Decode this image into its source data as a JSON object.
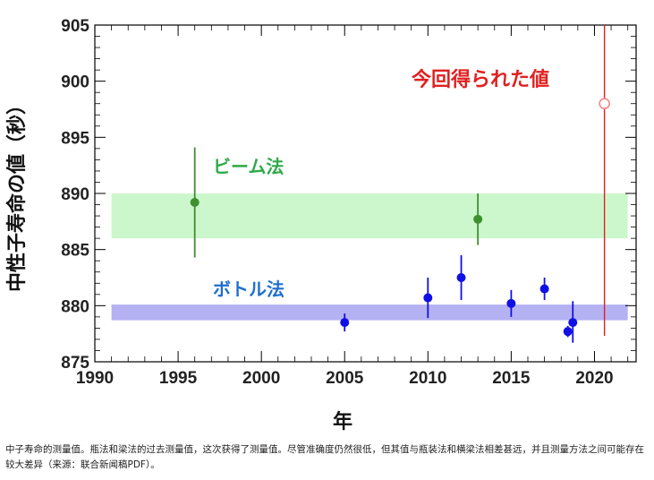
{
  "chart_data": {
    "type": "scatter",
    "xlabel": "年",
    "ylabel": "中性子寿命の値（秒）",
    "xlim": [
      1990,
      2022.5
    ],
    "ylim": [
      875,
      905
    ],
    "x_ticks": [
      1990,
      1995,
      2000,
      2005,
      2010,
      2015,
      2020
    ],
    "y_ticks": [
      875,
      880,
      885,
      890,
      895,
      900,
      905
    ],
    "bands": [
      {
        "name": "ビーム法",
        "x": [
          1991,
          2022
        ],
        "y": [
          886,
          890
        ],
        "color": "#ccf7cc",
        "label_color": "#2eaa4a"
      },
      {
        "name": "ボトル法",
        "x": [
          1991,
          2022
        ],
        "y": [
          878.7,
          880.1
        ],
        "color": "#b4b2f2",
        "label_color": "#1f6fd0"
      }
    ],
    "series": [
      {
        "name": "ビーム法",
        "color": "#3f8f2f",
        "points": [
          {
            "x": 1996,
            "y": 889.2,
            "ylo": 884.3,
            "yhi": 894.1
          },
          {
            "x": 2013,
            "y": 887.7,
            "ylo": 885.4,
            "yhi": 890.0
          }
        ]
      },
      {
        "name": "ボトル法",
        "color": "#1010e6",
        "points": [
          {
            "x": 2005,
            "y": 878.5,
            "ylo": 877.7,
            "yhi": 879.3
          },
          {
            "x": 2010,
            "y": 880.7,
            "ylo": 878.9,
            "yhi": 882.5
          },
          {
            "x": 2012,
            "y": 882.5,
            "ylo": 880.5,
            "yhi": 884.5
          },
          {
            "x": 2015,
            "y": 880.2,
            "ylo": 879.0,
            "yhi": 881.4
          },
          {
            "x": 2017,
            "y": 881.5,
            "ylo": 880.5,
            "yhi": 882.5
          },
          {
            "x": 2018.4,
            "y": 877.7,
            "ylo": 877.2,
            "yhi": 878.2
          },
          {
            "x": 2018.7,
            "y": 878.5,
            "ylo": 876.7,
            "yhi": 880.4
          }
        ]
      },
      {
        "name": "今回得られた値",
        "color": "#e02020",
        "hollow": true,
        "points": [
          {
            "x": 2020.6,
            "y": 898.0,
            "ylo": 877.3,
            "yhi": 905
          }
        ]
      }
    ],
    "annotations": [
      {
        "text": "今回得られた値",
        "color": "#e02020"
      }
    ]
  },
  "caption": "中子寿命的测量值。瓶法和梁法的过去测量值，这次获得了测量值。尽管准确度仍然很低，但其值与瓶装法和横梁法相差甚远，并且测量方法之间可能存在较大差异（来源：联合新闻稿PDF）。"
}
